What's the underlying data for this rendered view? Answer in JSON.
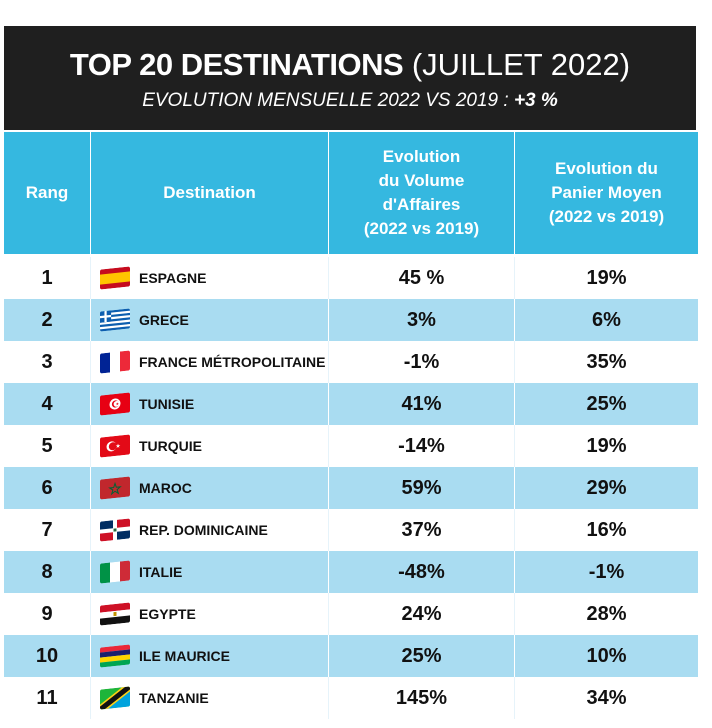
{
  "banner": {
    "title_bold": "TOP 20 DESTINATIONS",
    "title_rest": "(JUILLET 2022)",
    "subtitle": "EVOLUTION MENSUELLE 2022 VS 2019 :",
    "subtitle_figure": "+3 %"
  },
  "columns": {
    "rank": "Rang",
    "destination": "Destination",
    "volume": [
      "Evolution",
      "du Volume",
      "d'Affaires",
      "(2022 vs 2019)"
    ],
    "panier": [
      "Evolution du",
      "Panier Moyen",
      "(2022 vs 2019)"
    ]
  },
  "colors": {
    "header": "#35b8e0",
    "stripe": "#a9dcf1",
    "banner": "#1f1f1f"
  },
  "chart_data": {
    "type": "table",
    "title": "TOP 20 DESTINATIONS (JUILLET 2022)",
    "subtitle": "EVOLUTION MENSUELLE 2022 VS 2019 : +3 %",
    "headers": [
      "Rang",
      "Destination",
      "Evolution du Volume d'Affaires (2022 vs 2019)",
      "Evolution du Panier Moyen (2022 vs 2019)"
    ],
    "rows": [
      {
        "rank": "1",
        "destination": "ESPAGNE",
        "flag": "spain-flag-icon",
        "volume": "45 %",
        "panier": "19%"
      },
      {
        "rank": "2",
        "destination": "GRECE",
        "flag": "greece-flag-icon",
        "volume": "3%",
        "panier": "6%"
      },
      {
        "rank": "3",
        "destination": "FRANCE MÉTROPOLITAINE",
        "flag": "france-flag-icon",
        "volume": "-1%",
        "panier": "35%"
      },
      {
        "rank": "4",
        "destination": "TUNISIE",
        "flag": "tunisia-flag-icon",
        "volume": "41%",
        "panier": "25%"
      },
      {
        "rank": "5",
        "destination": "TURQUIE",
        "flag": "turkey-flag-icon",
        "volume": "-14%",
        "panier": "19%"
      },
      {
        "rank": "6",
        "destination": "MAROC",
        "flag": "morocco-flag-icon",
        "volume": "59%",
        "panier": "29%"
      },
      {
        "rank": "7",
        "destination": "REP. DOMINICAINE",
        "flag": "dominican-republic-flag-icon",
        "volume": "37%",
        "panier": "16%"
      },
      {
        "rank": "8",
        "destination": "ITALIE",
        "flag": "italy-flag-icon",
        "volume": "-48%",
        "panier": "-1%"
      },
      {
        "rank": "9",
        "destination": "EGYPTE",
        "flag": "egypt-flag-icon",
        "volume": "24%",
        "panier": "28%"
      },
      {
        "rank": "10",
        "destination": "ILE MAURICE",
        "flag": "mauritius-flag-icon",
        "volume": "25%",
        "panier": "10%"
      },
      {
        "rank": "11",
        "destination": "TANZANIE",
        "flag": "tanzania-flag-icon",
        "volume": "145%",
        "panier": "34%"
      }
    ]
  }
}
